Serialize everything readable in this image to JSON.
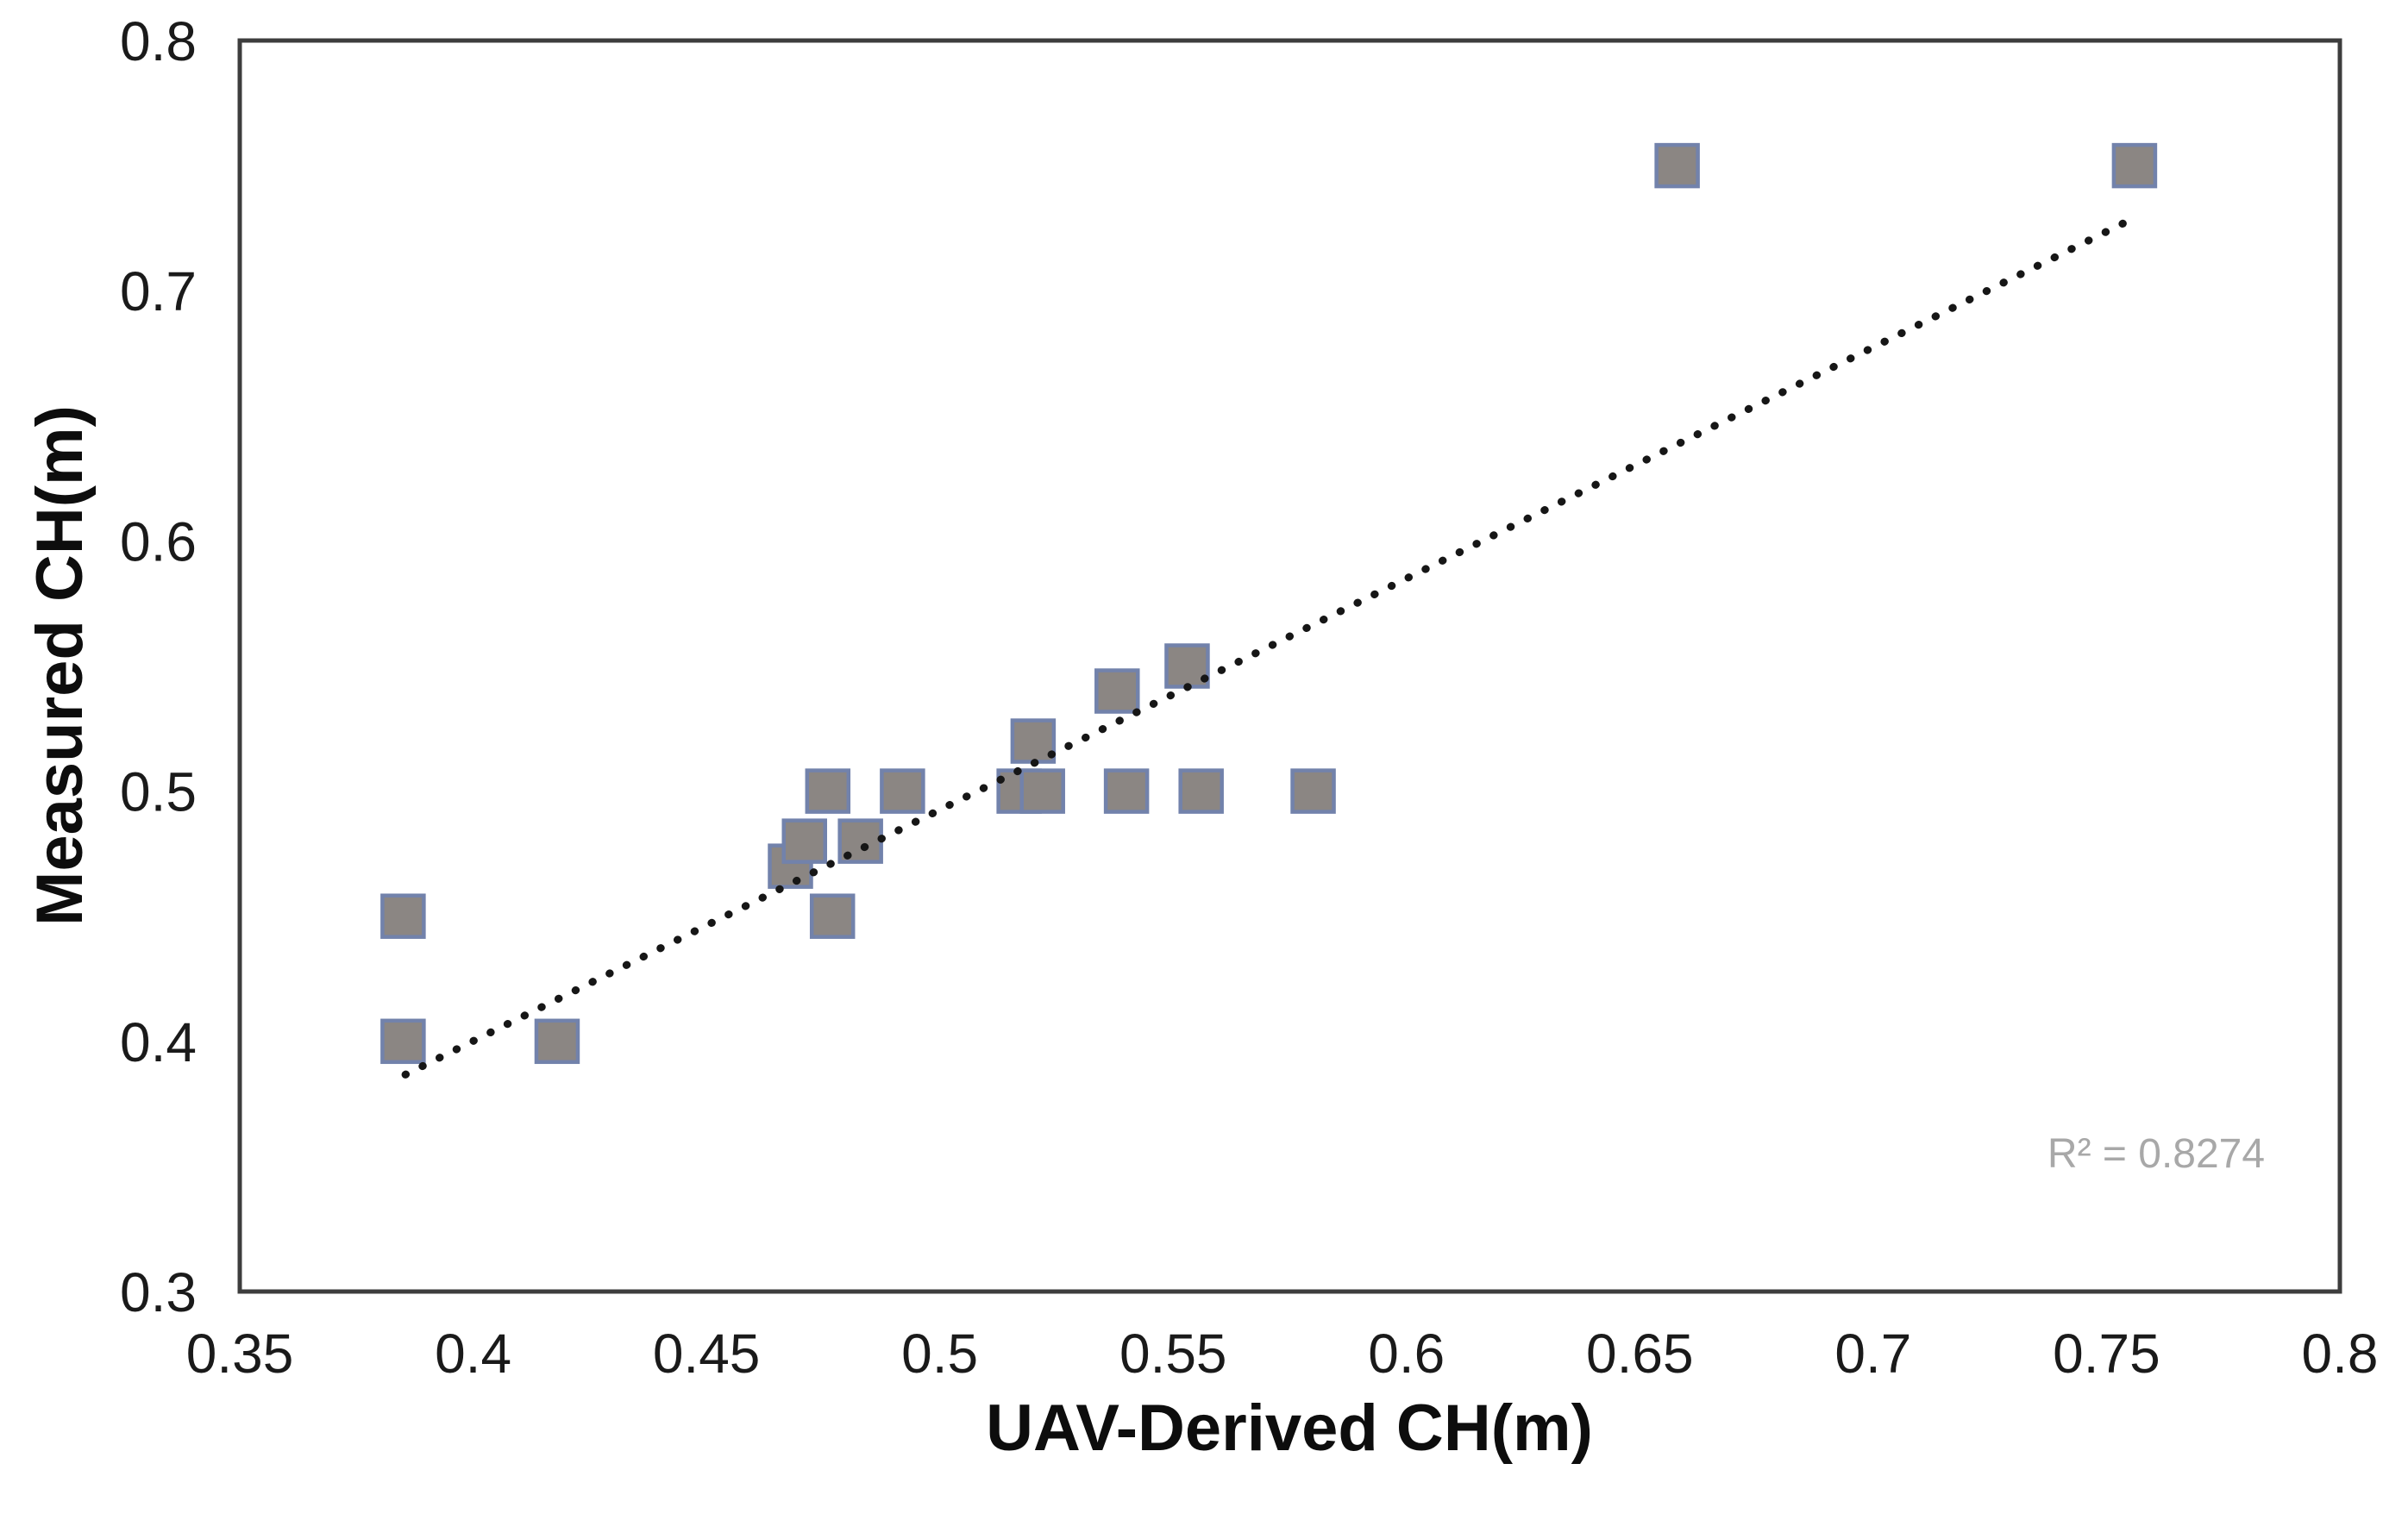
{
  "chart_data": {
    "type": "scatter",
    "title": "",
    "xlabel": "UAV-Derived CH(m)",
    "ylabel": "Measured CH(m)",
    "xlim": [
      0.35,
      0.8
    ],
    "ylim": [
      0.3,
      0.8
    ],
    "grid": false,
    "legend": null,
    "x_ticks": [
      {
        "value": 0.35,
        "label": "0.35"
      },
      {
        "value": 0.4,
        "label": "0.4"
      },
      {
        "value": 0.45,
        "label": "0.45"
      },
      {
        "value": 0.5,
        "label": "0.5"
      },
      {
        "value": 0.55,
        "label": "0.55"
      },
      {
        "value": 0.6,
        "label": "0.6"
      },
      {
        "value": 0.65,
        "label": "0.65"
      },
      {
        "value": 0.7,
        "label": "0.7"
      },
      {
        "value": 0.75,
        "label": "0.75"
      },
      {
        "value": 0.8,
        "label": "0.8"
      }
    ],
    "y_ticks": [
      {
        "value": 0.8,
        "label": "0.8"
      },
      {
        "value": 0.7,
        "label": "0.7"
      },
      {
        "value": 0.6,
        "label": "0.6"
      },
      {
        "value": 0.5,
        "label": "0.5"
      },
      {
        "value": 0.4,
        "label": "0.4"
      },
      {
        "value": 0.3,
        "label": "0.3"
      }
    ],
    "points": [
      [
        0.385,
        0.45
      ],
      [
        0.385,
        0.4
      ],
      [
        0.418,
        0.4
      ],
      [
        0.468,
        0.47
      ],
      [
        0.471,
        0.48
      ],
      [
        0.483,
        0.48
      ],
      [
        0.476,
        0.5
      ],
      [
        0.492,
        0.5
      ],
      [
        0.477,
        0.45
      ],
      [
        0.52,
        0.52
      ],
      [
        0.517,
        0.5
      ],
      [
        0.522,
        0.5
      ],
      [
        0.538,
        0.54
      ],
      [
        0.54,
        0.5
      ],
      [
        0.553,
        0.55
      ],
      [
        0.556,
        0.5
      ],
      [
        0.58,
        0.5
      ],
      [
        0.658,
        0.75
      ],
      [
        0.756,
        0.75
      ]
    ],
    "marker": {
      "shape": "square",
      "fill": "#8b8683",
      "border": "#7282ab"
    },
    "trendline": {
      "style": "dotted",
      "color": "#161616",
      "x_start": 0.3855,
      "y_start": 0.3867,
      "x_end": 0.7555,
      "y_end": 0.7287
    },
    "annotation": {
      "text": "R² = 0.8274",
      "color": "#a8a8a8"
    },
    "r_squared": 0.8274,
    "axis_color": "#3d3d3d"
  }
}
